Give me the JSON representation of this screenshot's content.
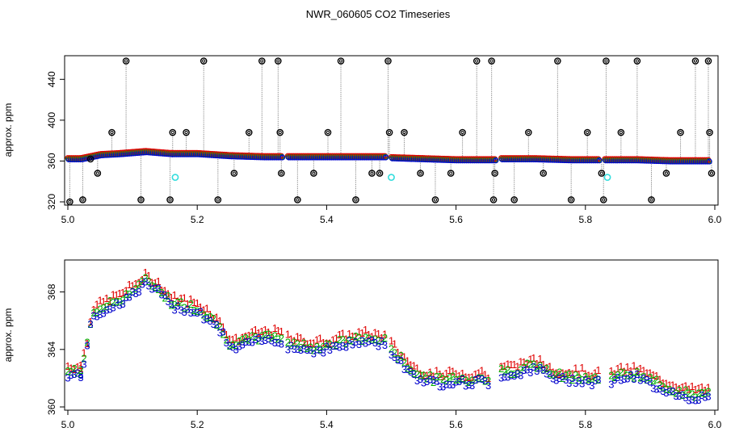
{
  "title": "NWR_060605  CO2 Timeseries",
  "chart_data": [
    {
      "type": "scatter",
      "panel": "top",
      "title": "NWR_060605  CO2 Timeseries",
      "xlabel": "",
      "ylabel": "approx. ppm",
      "xlim": [
        5.0,
        6.0
      ],
      "ylim": [
        320,
        460
      ],
      "x_ticks": [
        "5.0",
        "5.2",
        "5.4",
        "5.6",
        "5.8",
        "6.0"
      ],
      "y_ticks": [
        "320",
        "360",
        "400",
        "440"
      ],
      "grid": false,
      "colors": {
        "series_1": "#e00000",
        "series_2": "#00b000",
        "series_3": "#0000cc",
        "spikes": "#000000",
        "cyan_points": "#33dddd",
        "drop_lines": "#888888"
      },
      "baseline_segments": [
        {
          "x": [
            5.0,
            5.02,
            5.05,
            5.08,
            5.1,
            5.12,
            5.14,
            5.16
          ]
        },
        {
          "x": [
            5.16,
            5.2,
            5.25,
            5.3,
            5.33
          ]
        },
        {
          "x": [
            5.34,
            5.4,
            5.45,
            5.49
          ]
        },
        {
          "x": [
            5.5,
            5.55,
            5.6,
            5.65,
            5.66
          ]
        },
        {
          "x": [
            5.67,
            5.72,
            5.78,
            5.82
          ]
        },
        {
          "x": [
            5.83,
            5.88,
            5.93,
            5.99
          ]
        }
      ],
      "baseline_curve": {
        "x": [
          5.0,
          5.02,
          5.05,
          5.08,
          5.1,
          5.12,
          5.14,
          5.16,
          5.2,
          5.25,
          5.3,
          5.33,
          5.34,
          5.4,
          5.45,
          5.49,
          5.5,
          5.55,
          5.6,
          5.65,
          5.66,
          5.67,
          5.72,
          5.78,
          5.82,
          5.83,
          5.88,
          5.93,
          5.99
        ],
        "y": [
          362,
          362,
          366,
          367,
          368,
          369,
          368,
          367,
          367,
          365,
          364,
          364,
          364,
          364,
          364,
          364,
          363,
          362,
          361,
          361,
          361,
          362,
          362,
          361,
          361,
          361,
          361,
          360,
          360
        ]
      },
      "spikes": {
        "x": [
          5.003,
          5.023,
          5.035,
          5.046,
          5.068,
          5.09,
          5.113,
          5.158,
          5.162,
          5.183,
          5.21,
          5.232,
          5.257,
          5.28,
          5.3,
          5.325,
          5.328,
          5.33,
          5.355,
          5.38,
          5.402,
          5.422,
          5.445,
          5.47,
          5.482,
          5.495,
          5.497,
          5.52,
          5.545,
          5.568,
          5.592,
          5.61,
          5.632,
          5.655,
          5.658,
          5.66,
          5.69,
          5.712,
          5.735,
          5.757,
          5.778,
          5.803,
          5.825,
          5.828,
          5.832,
          5.855,
          5.88,
          5.902,
          5.925,
          5.947,
          5.97,
          5.99,
          5.992,
          5.995
        ],
        "y": [
          320,
          322,
          362,
          348,
          388,
          458,
          322,
          322,
          388,
          388,
          458,
          322,
          348,
          388,
          458,
          458,
          388,
          348,
          322,
          348,
          388,
          458,
          322,
          348,
          348,
          458,
          388,
          388,
          348,
          322,
          348,
          388,
          458,
          458,
          322,
          348,
          322,
          388,
          348,
          458,
          322,
          388,
          348,
          322,
          458,
          388,
          458,
          322,
          348,
          388,
          458,
          458,
          388,
          348
        ]
      },
      "cyan_points": {
        "x": [
          5.166,
          5.5,
          5.834
        ],
        "y": [
          344,
          344,
          344
        ]
      }
    },
    {
      "type": "scatter",
      "panel": "bottom",
      "xlabel": "",
      "ylabel": "approx. ppm",
      "xlim": [
        5.0,
        6.0
      ],
      "ylim": [
        360,
        370
      ],
      "x_ticks": [
        "5.0",
        "5.2",
        "5.4",
        "5.6",
        "5.8",
        "6.0"
      ],
      "y_ticks": [
        "360",
        "364",
        "368"
      ],
      "grid": false,
      "segments": [
        {
          "x": [
            5.0,
            5.02
          ],
          "y": [
            362.2,
            362.2
          ]
        },
        {
          "x": [
            5.02,
            5.03,
            5.035,
            5.04,
            5.06,
            5.08,
            5.1,
            5.12,
            5.14,
            5.16,
            5.18,
            5.2,
            5.22,
            5.24,
            5.25,
            5.26,
            5.28,
            5.3,
            5.32,
            5.33
          ],
          "y": [
            362.2,
            364.0,
            365.5,
            366.3,
            366.8,
            367.2,
            367.8,
            368.5,
            368.0,
            367.0,
            366.8,
            366.6,
            366.0,
            365.0,
            364.2,
            364.0,
            364.4,
            364.6,
            364.6,
            364.6
          ]
        },
        {
          "x": [
            5.34,
            5.36,
            5.38,
            5.4,
            5.42,
            5.44,
            5.46,
            5.48,
            5.49
          ],
          "y": [
            364.2,
            364.0,
            363.9,
            364.0,
            364.2,
            364.4,
            364.5,
            364.4,
            364.3
          ]
        },
        {
          "x": [
            5.5,
            5.52,
            5.54,
            5.56,
            5.58,
            5.6,
            5.62,
            5.64,
            5.65
          ],
          "y": [
            363.8,
            362.8,
            362.0,
            361.7,
            361.6,
            361.8,
            361.6,
            361.8,
            361.5
          ]
        },
        {
          "x": [
            5.67,
            5.69,
            5.71,
            5.73,
            5.75,
            5.77,
            5.79,
            5.81,
            5.82
          ],
          "y": [
            362.2,
            362.2,
            362.6,
            362.5,
            362.0,
            361.8,
            361.9,
            361.7,
            361.7
          ]
        },
        {
          "x": [
            5.84,
            5.86,
            5.88,
            5.9,
            5.92,
            5.94,
            5.96,
            5.98,
            5.99
          ],
          "y": [
            361.8,
            362.0,
            362.0,
            361.6,
            361.2,
            360.9,
            360.6,
            360.6,
            360.6
          ]
        }
      ],
      "series": [
        {
          "name": "1",
          "color": "#e00000",
          "offset": 0.6
        },
        {
          "name": "2",
          "color": "#00b000",
          "offset": 0.25
        },
        {
          "name": "3",
          "color": "#0000cc",
          "offset": 0.0
        }
      ]
    }
  ]
}
